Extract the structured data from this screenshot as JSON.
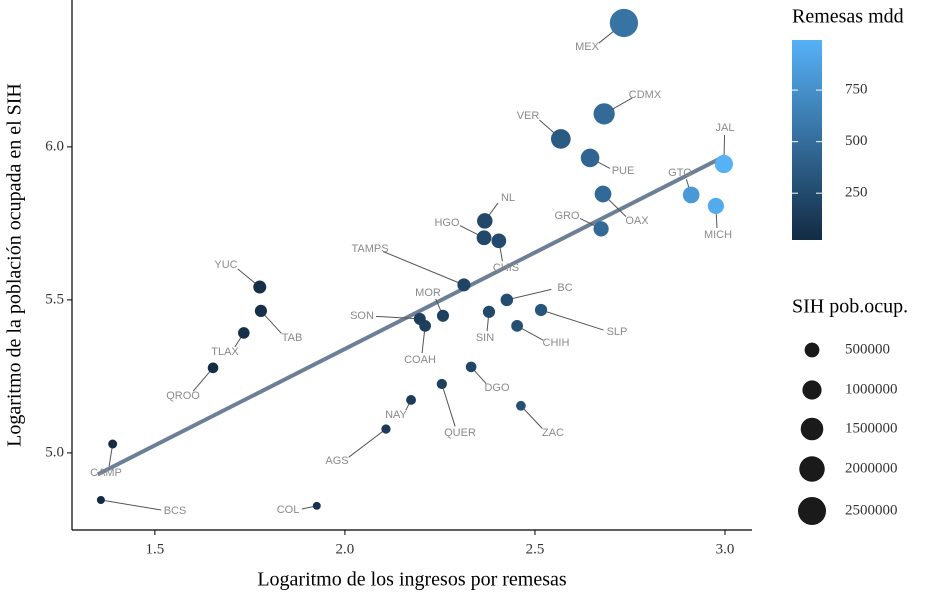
{
  "chart_data": {
    "type": "scatter",
    "xlabel": "Logaritmo de los ingresos por remesas",
    "ylabel": "Logaritmo de la población ocupada en el SIH",
    "labels": [
      "MEX",
      "CDMX",
      "VER",
      "PUE",
      "JAL",
      "GTO",
      "MICH",
      "OAX",
      "GRO",
      "NL",
      "HGO",
      "CHIS",
      "TAMPS",
      "BC",
      "SLP",
      "MOR",
      "SIN",
      "CHIH",
      "SON",
      "COAH",
      "YUC",
      "TAB",
      "TLAX",
      "QROO",
      "DGO",
      "QUER",
      "NAY",
      "ZAC",
      "AGS",
      "CAMP",
      "BCS",
      "COL"
    ],
    "x": [
      2.734,
      2.682,
      2.568,
      2.645,
      2.997,
      2.911,
      2.976,
      2.679,
      2.674,
      2.368,
      2.366,
      2.405,
      2.313,
      2.426,
      2.516,
      2.258,
      2.379,
      2.453,
      2.197,
      2.211,
      1.776,
      1.779,
      1.734,
      1.653,
      2.332,
      2.255,
      2.174,
      2.463,
      2.108,
      1.389,
      1.358,
      1.926
    ],
    "y": [
      6.405,
      6.108,
      6.026,
      5.964,
      5.944,
      5.843,
      5.807,
      5.846,
      5.732,
      5.758,
      5.703,
      5.693,
      5.549,
      5.5,
      5.467,
      5.448,
      5.461,
      5.415,
      5.438,
      5.415,
      5.542,
      5.464,
      5.392,
      5.278,
      5.281,
      5.225,
      5.173,
      5.154,
      5.078,
      5.029,
      4.846,
      4.827
    ],
    "trend": {
      "x": [
        1.35,
        3.0
      ],
      "y": [
        4.93,
        5.97
      ],
      "color": "#6b7f96"
    },
    "xlim": [
      1.282,
      3.071
    ],
    "ylim": [
      4.748,
      6.48
    ],
    "xticks": [
      1.5,
      {
        "value": 2,
        "label": "2.0"
      },
      2.5,
      {
        "value": 3,
        "label": "3.0"
      }
    ],
    "yticks": [
      {
        "value": 5,
        "label": "5.0"
      },
      5.5,
      {
        "value": 6,
        "label": "6.0"
      }
    ],
    "colorbar": {
      "title": "Remesas mdd",
      "lim": [
        23,
        993
      ],
      "ticks": [
        250,
        500,
        750
      ],
      "colors": [
        "#132B43",
        "#56B1F7"
      ]
    },
    "size_legend": {
      "title": "SIH pob.ocup.",
      "values": [
        500000,
        1000000,
        1500000,
        2000000,
        2500000
      ]
    }
  }
}
